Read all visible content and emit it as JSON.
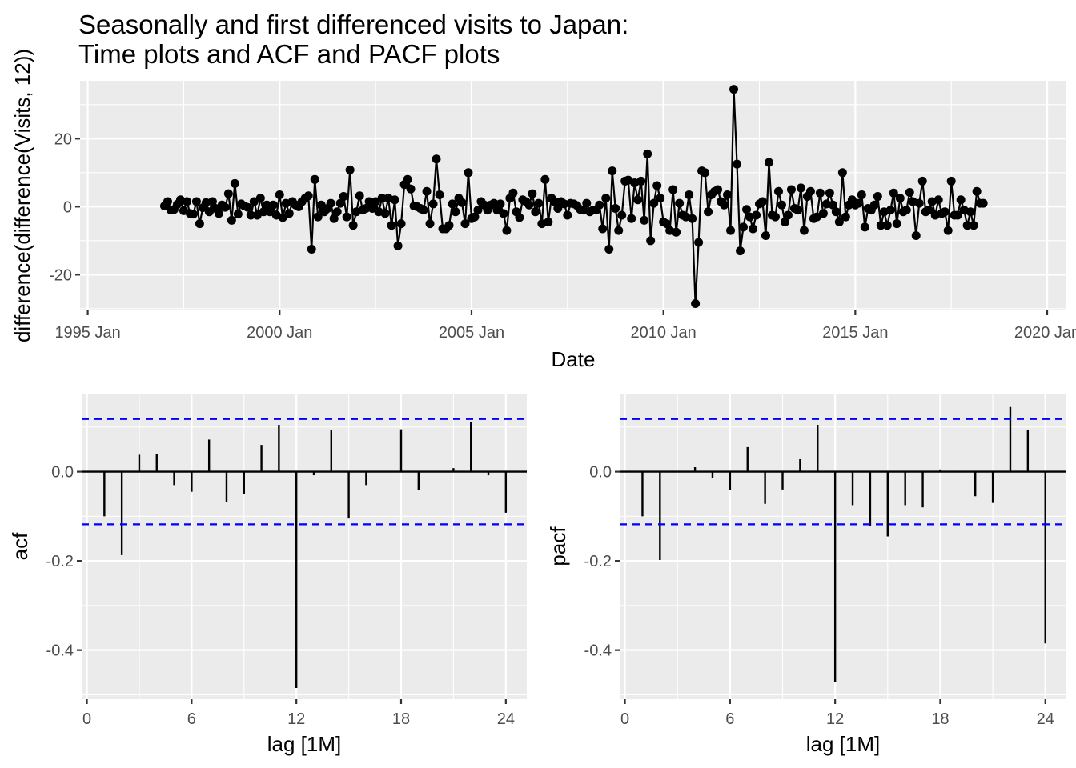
{
  "title": [
    "Seasonally and first differenced visits to Japan:",
    "Time plots and ACF and PACF plots"
  ],
  "chart_data": [
    {
      "id": "time-plot",
      "type": "line",
      "xlabel": "Date",
      "ylabel": "difference(difference(Visits, 12))",
      "x_start": "1997 Jan",
      "x_step": "1 month",
      "xticks": [
        "1995 Jan",
        "2000 Jan",
        "2005 Jan",
        "2010 Jan",
        "2015 Jan",
        "2020 Jan"
      ],
      "yticks": [
        "-20",
        "0",
        "20"
      ],
      "xlim": [
        1994.8,
        2020.5
      ],
      "ylim": [
        -30.5,
        37
      ],
      "points_marked": true,
      "values": [
        0.2,
        1.5,
        -1.0,
        -0.8,
        0.7,
        2.0,
        -1.2,
        1.5,
        -2.0,
        -2.2,
        1.5,
        -5.0,
        -0.3,
        1.2,
        -1.5,
        1.5,
        -0.5,
        -2.0,
        0.5,
        -0.2,
        3.8,
        -4.0,
        6.8,
        -2.2,
        0.8,
        0.2,
        -0.2,
        -2.5,
        1.5,
        -2.5,
        2.5,
        -1.5,
        0.5,
        -1.5,
        0.5,
        -2.5,
        3.5,
        -3.2,
        1.0,
        -2.0,
        1.5,
        0.5,
        0.0,
        1.5,
        2.5,
        3.2,
        -12.5,
        8.0,
        -3.0,
        0.5,
        -1.5,
        -0.5,
        1.0,
        -3.5,
        -1.5,
        1.0,
        3.0,
        -3.0,
        10.8,
        -5.5,
        -1.5,
        3.2,
        -1.0,
        -0.5,
        1.5,
        -0.5,
        1.5,
        -1.5,
        2.5,
        -2.0,
        2.5,
        -5.5,
        2.0,
        -11.5,
        -5.0,
        6.5,
        8.0,
        5.2,
        0.2,
        0.0,
        -0.5,
        -1.0,
        4.5,
        -5.0,
        0.8,
        14.0,
        3.5,
        -6.5,
        -6.5,
        -5.5,
        0.8,
        -1.5,
        2.5,
        1.2,
        -5.0,
        10.0,
        -3.5,
        -3.0,
        -1.0,
        1.5,
        0.5,
        -1.0,
        0.5,
        1.0,
        -1.0,
        0.8,
        -2.0,
        -7.0,
        2.5,
        4.0,
        -1.5,
        -3.2,
        2.0,
        1.5,
        0.5,
        3.8,
        -1.5,
        1.0,
        -5.0,
        8.0,
        -4.5,
        2.5,
        1.5,
        -0.5,
        1.5,
        0.8,
        -2.5,
        1.0,
        0.8,
        0.3,
        -0.8,
        -1.0,
        1.0,
        -1.5,
        -1.0,
        -1.0,
        0.5,
        -6.5,
        2.5,
        -12.5,
        10.5,
        -0.5,
        -7.0,
        -2.5,
        7.5,
        7.8,
        -3.5,
        7.0,
        2.0,
        7.5,
        -4.0,
        15.5,
        -10.0,
        1.0,
        6.2,
        2.5,
        -4.5,
        -5.0,
        -7.0,
        5.0,
        -7.5,
        1.0,
        -2.5,
        -3.0,
        3.5,
        -3.5,
        -28.5,
        -10.5,
        10.5,
        10.0,
        -1.5,
        3.5,
        4.5,
        5.0,
        1.5,
        0.5,
        3.5,
        -7.0,
        34.5,
        12.5,
        -13.0,
        -6.0,
        -0.8,
        -3.0,
        -6.5,
        -2.5,
        0.8,
        1.5,
        -8.5,
        13.0,
        -2.5,
        -3.0,
        4.5,
        0.5,
        -4.5,
        -2.5,
        5.0,
        -0.5,
        -1.0,
        5.5,
        -7.0,
        3.0,
        4.5,
        -3.5,
        -3.0,
        4.0,
        -2.0,
        0.8,
        4.0,
        0.5,
        -1.5,
        -4.5,
        10.0,
        -3.0,
        0.5,
        2.0,
        0.5,
        1.0,
        3.5,
        -6.0,
        -0.5,
        -1.0,
        0.5,
        3.0,
        -5.5,
        -1.5,
        -5.5,
        -1.0,
        4.0,
        -5.0,
        2.5,
        -1.5,
        -1.0,
        4.2,
        1.5,
        -8.5,
        1.0,
        7.5,
        -1.5,
        -1.0,
        1.5,
        -2.5,
        2.0,
        -2.0,
        -1.5,
        -7.0,
        7.5,
        -2.5,
        -2.5,
        2.0,
        -1.0,
        -5.5,
        -1.5,
        -5.5,
        4.5,
        1.0,
        1.0
      ]
    },
    {
      "id": "acf-plot",
      "type": "bar",
      "xlabel": "lag [1M]",
      "ylabel": "acf",
      "xticks": [
        "0",
        "6",
        "12",
        "18",
        "24"
      ],
      "yticks": [
        "-0.4",
        "-0.2",
        "0.0"
      ],
      "xlim": [
        -0.3,
        25.2
      ],
      "ylim": [
        -0.51,
        0.175
      ],
      "lags": [
        1,
        2,
        3,
        4,
        5,
        6,
        7,
        8,
        9,
        10,
        11,
        12,
        13,
        14,
        15,
        16,
        17,
        18,
        19,
        20,
        21,
        22,
        23,
        24
      ],
      "values": [
        -0.1,
        -0.187,
        0.038,
        0.04,
        -0.03,
        -0.045,
        0.072,
        -0.068,
        -0.05,
        0.06,
        0.105,
        -0.485,
        -0.008,
        0.094,
        -0.105,
        -0.03,
        0.0,
        0.095,
        -0.042,
        0.0,
        0.008,
        0.112,
        -0.008,
        -0.092
      ],
      "confidence_bound": 0.118
    },
    {
      "id": "pacf-plot",
      "type": "bar",
      "xlabel": "lag [1M]",
      "ylabel": "pacf",
      "xticks": [
        "0",
        "6",
        "12",
        "18",
        "24"
      ],
      "yticks": [
        "-0.4",
        "-0.2",
        "0.0"
      ],
      "xlim": [
        -0.3,
        25.2
      ],
      "ylim": [
        -0.51,
        0.175
      ],
      "lags": [
        1,
        2,
        3,
        4,
        5,
        6,
        7,
        8,
        9,
        10,
        11,
        12,
        13,
        14,
        15,
        16,
        17,
        18,
        19,
        20,
        21,
        22,
        23,
        24
      ],
      "values": [
        -0.1,
        -0.198,
        0.0,
        0.01,
        -0.015,
        -0.042,
        0.055,
        -0.072,
        -0.04,
        0.028,
        0.105,
        -0.472,
        -0.075,
        -0.122,
        -0.145,
        -0.075,
        -0.08,
        0.005,
        0.002,
        -0.055,
        -0.07,
        0.145,
        0.094,
        -0.385
      ],
      "confidence_bound": 0.118
    }
  ],
  "colors": {
    "panel_background": "#ebebeb",
    "grid": "#ffffff",
    "data": "#000000",
    "confidence_line": "#0000ff",
    "tick_label": "#4d4d4d"
  }
}
